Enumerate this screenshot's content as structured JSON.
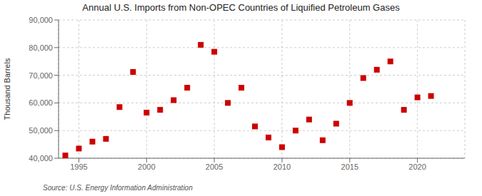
{
  "chart_data": {
    "type": "scatter",
    "title": "Annual U.S. Imports from Non-OPEC Countries of Liquified Petroleum Gases",
    "ylabel": "Thousand Barrels",
    "source": "Source: U.S. Energy Information Administration",
    "x": [
      1994,
      1995,
      1996,
      1997,
      1998,
      1999,
      2000,
      2001,
      2002,
      2003,
      2004,
      2005,
      2006,
      2007,
      2008,
      2009,
      2010,
      2011,
      2012,
      2013,
      2014,
      2015,
      2016,
      2017,
      2018,
      2019,
      2020,
      2021
    ],
    "values": [
      41000,
      43500,
      46000,
      47000,
      58500,
      71200,
      56500,
      57500,
      61000,
      65500,
      81000,
      78500,
      60000,
      65500,
      51500,
      47500,
      44000,
      50000,
      54000,
      46500,
      52500,
      60000,
      69000,
      72000,
      75000,
      57500,
      62000,
      62500
    ],
    "color": "#CC0000",
    "marker": "square",
    "xlim": [
      1993.5,
      2023.5
    ],
    "xticks": [
      1995,
      2000,
      2005,
      2010,
      2015,
      2020
    ],
    "ylim": [
      40000,
      90000
    ],
    "yticks": [
      {
        "value": 40000,
        "label": "40,000"
      },
      {
        "value": 50000,
        "label": "50,000"
      },
      {
        "value": 60000,
        "label": "60,000"
      },
      {
        "value": 70000,
        "label": "70,000"
      },
      {
        "value": 80000,
        "label": "80,000"
      },
      {
        "value": 90000,
        "label": "90,000"
      }
    ],
    "grid": true
  }
}
